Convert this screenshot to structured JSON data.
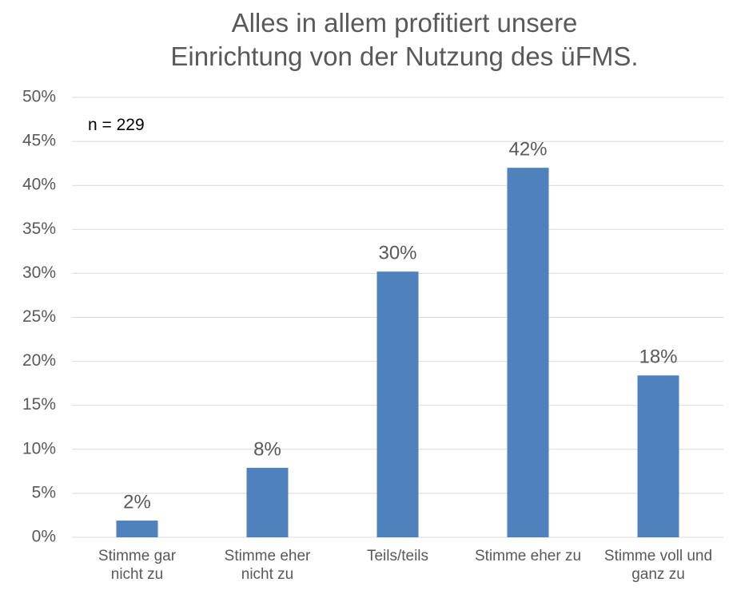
{
  "chart_data": {
    "type": "bar",
    "title": "Alles in allem profitiert unsere Einrichtung von der Nutzung des üFMS.",
    "annotation": "n = 229",
    "categories": [
      "Stimme gar nicht zu",
      "Stimme eher nicht zu",
      "Teils/teils",
      "Stimme eher zu",
      "Stimme voll und ganz zu"
    ],
    "values": [
      1.9,
      7.9,
      30.2,
      42.0,
      18.4
    ],
    "value_labels": [
      "2%",
      "8%",
      "30%",
      "42%",
      "18%"
    ],
    "color": "#4f81bd",
    "ylim": [
      0,
      50
    ],
    "yticks": [
      {
        "value": 0,
        "label": "0%"
      },
      {
        "value": 5,
        "label": "5%"
      },
      {
        "value": 10,
        "label": "10%"
      },
      {
        "value": 15,
        "label": "15%"
      },
      {
        "value": 20,
        "label": "20%"
      },
      {
        "value": 25,
        "label": "25%"
      },
      {
        "value": 30,
        "label": "30%"
      },
      {
        "value": 35,
        "label": "35%"
      },
      {
        "value": 40,
        "label": "40%"
      },
      {
        "value": 45,
        "label": "45%"
      },
      {
        "value": 50,
        "label": "50%"
      }
    ],
    "grid": true
  }
}
